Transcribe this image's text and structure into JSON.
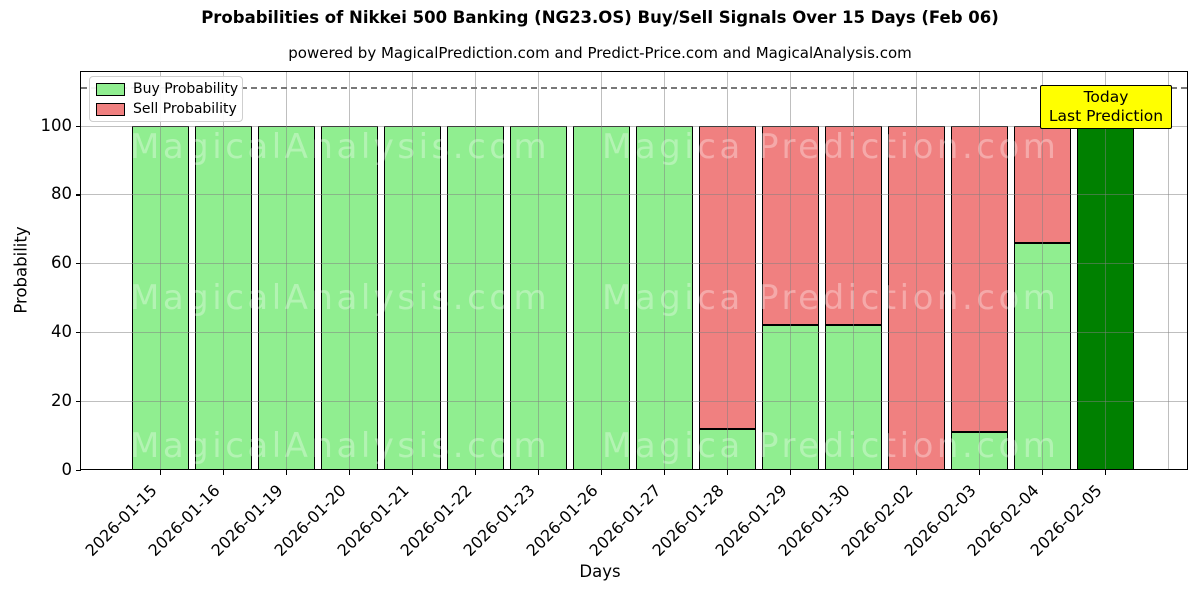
{
  "chart_data": {
    "type": "bar",
    "stacked": true,
    "title": "Probabilities of Nikkei 500 Banking (NG23.OS) Buy/Sell Signals Over 15 Days (Feb 06)",
    "subtitle": "powered by MagicalPrediction.com and Predict-Price.com and MagicalAnalysis.com",
    "categories": [
      "2026-01-15",
      "2026-01-16",
      "2026-01-19",
      "2026-01-20",
      "2026-01-21",
      "2026-01-22",
      "2026-01-23",
      "2026-01-26",
      "2026-01-27",
      "2026-01-28",
      "2026-01-29",
      "2026-01-30",
      "2026-02-02",
      "2026-02-03",
      "2026-02-04",
      "2026-02-05"
    ],
    "series": [
      {
        "name": "Buy Probability",
        "color": "#90EE90",
        "values": [
          100,
          100,
          100,
          100,
          100,
          100,
          100,
          100,
          100,
          12,
          42,
          42,
          0,
          11,
          66,
          100
        ]
      },
      {
        "name": "Sell Probability",
        "color": "#F08080",
        "values": [
          0,
          0,
          0,
          0,
          0,
          0,
          0,
          0,
          0,
          88,
          58,
          58,
          100,
          89,
          34,
          0
        ]
      }
    ],
    "today_bar": {
      "index": 15,
      "color": "#008000",
      "value": 100
    },
    "annotation": {
      "lines": [
        "Today",
        "Last Prediction"
      ],
      "background": "#FFFF00"
    },
    "xlabel": "Days",
    "ylabel": "Probability",
    "yticks": [
      0,
      20,
      40,
      60,
      80,
      100
    ],
    "ylim": [
      0,
      116
    ],
    "dashed_line_y": 110,
    "grid": true,
    "legend_position": "top-left",
    "watermarks": {
      "left_text": "MagicalAnalysis.com",
      "right_text": "Magica Prediction.com"
    }
  }
}
